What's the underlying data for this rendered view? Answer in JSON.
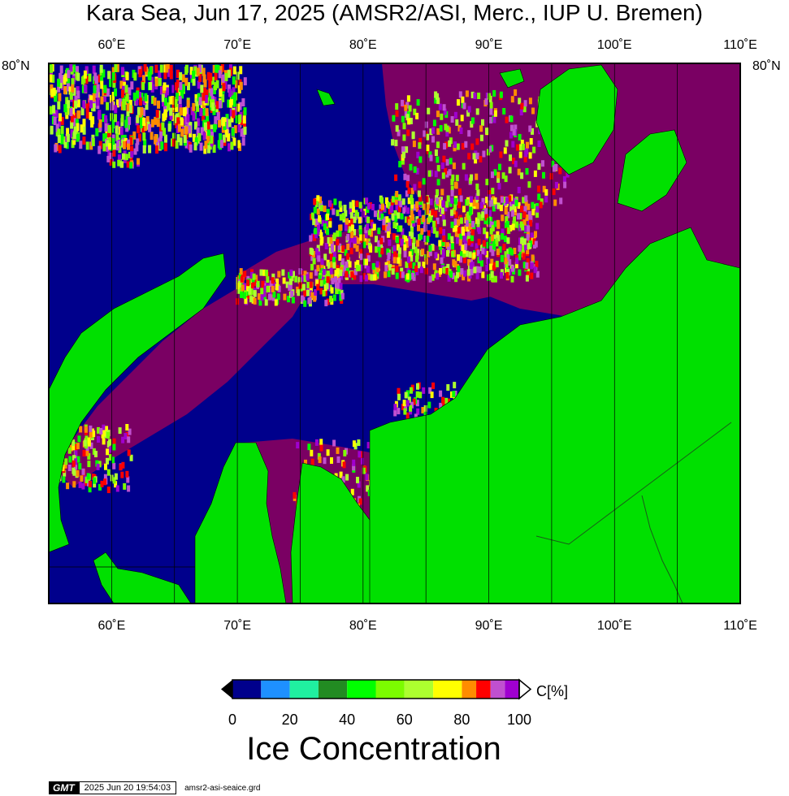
{
  "title": "Kara Sea, Jun 17, 2025 (AMSR2/ASI, Merc., IUP U. Bremen)",
  "map": {
    "lon_ticks": [
      {
        "lon": 60,
        "label": "60˚E"
      },
      {
        "lon": 70,
        "label": "70˚E"
      },
      {
        "lon": 80,
        "label": "80˚E"
      },
      {
        "lon": 90,
        "label": "90˚E"
      },
      {
        "lon": 100,
        "label": "100˚E"
      },
      {
        "lon": 110,
        "label": "110˚E"
      }
    ],
    "lat_label_left": "80˚N",
    "lat_label_right": "80˚N",
    "lon_range": [
      55,
      110
    ],
    "colors": {
      "ocean": "#00008c",
      "land": "#00e000",
      "ice_high": "#7a0063",
      "ice_mid": "#a020d0",
      "ice_marginal": "#ffff00"
    }
  },
  "colorbar": {
    "title": "Ice Concentration",
    "unit": "C[%]",
    "ticks": [
      "0",
      "20",
      "40",
      "60",
      "80",
      "100"
    ],
    "bins": [
      {
        "from": 0,
        "to": 10,
        "color": "#00008c"
      },
      {
        "from": 10,
        "to": 20,
        "color": "#1e90ff"
      },
      {
        "from": 20,
        "to": 30,
        "color": "#20f0a0"
      },
      {
        "from": 30,
        "to": 40,
        "color": "#228b22"
      },
      {
        "from": 40,
        "to": 50,
        "color": "#00ff00"
      },
      {
        "from": 50,
        "to": 60,
        "color": "#7cfc00"
      },
      {
        "from": 60,
        "to": 70,
        "color": "#adff2f"
      },
      {
        "from": 70,
        "to": 80,
        "color": "#ffff00"
      },
      {
        "from": 80,
        "to": 85,
        "color": "#ff8c00"
      },
      {
        "from": 85,
        "to": 90,
        "color": "#ff0000"
      },
      {
        "from": 90,
        "to": 95,
        "color": "#c050d0"
      },
      {
        "from": 95,
        "to": 100,
        "color": "#a000d0"
      }
    ]
  },
  "footer": {
    "logo": "GMT",
    "timestamp": "2025 Jun 20 19:54:03",
    "grid_file": "amsr2-asi-seaice.grd"
  }
}
